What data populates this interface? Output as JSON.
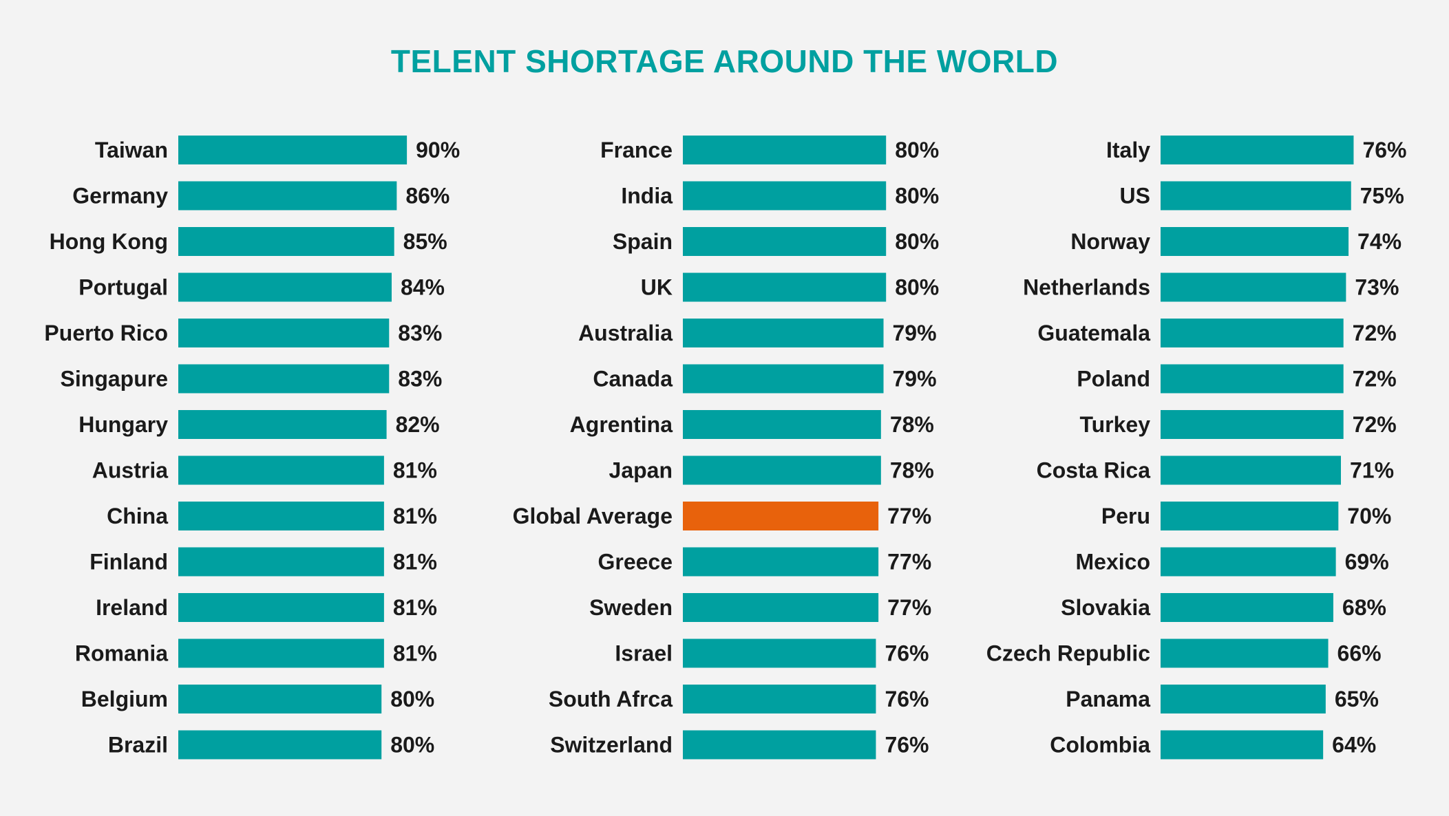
{
  "chart_data": {
    "type": "bar",
    "orientation": "horizontal",
    "title": "TELENT SHORTAGE AROUND THE WORLD",
    "value_suffix": "%",
    "xlim": [
      0,
      100
    ],
    "grid": false,
    "colors": {
      "bar": "#00a0a0",
      "highlight": "#e8620c",
      "text": "#1a1a1a",
      "title": "#00a0a0"
    },
    "highlight_category": "Global Average",
    "panels": [
      {
        "categories": [
          "Taiwan",
          "Germany",
          "Hong Kong",
          "Portugal",
          "Puerto Rico",
          "Singapure",
          "Hungary",
          "Austria",
          "China",
          "Finland",
          "Ireland",
          "Romania",
          "Belgium",
          "Brazil"
        ],
        "values": [
          90,
          86,
          85,
          84,
          83,
          83,
          82,
          81,
          81,
          81,
          81,
          81,
          80,
          80
        ]
      },
      {
        "categories": [
          "France",
          "India",
          "Spain",
          "UK",
          "Australia",
          "Canada",
          "Agrentina",
          "Japan",
          "Global Average",
          "Greece",
          "Sweden",
          "Israel",
          "South Afrca",
          "Switzerland"
        ],
        "values": [
          80,
          80,
          80,
          80,
          79,
          79,
          78,
          78,
          77,
          77,
          77,
          76,
          76,
          76
        ]
      },
      {
        "categories": [
          "Italy",
          "US",
          "Norway",
          "Netherlands",
          "Guatemala",
          "Poland",
          "Turkey",
          "Costa Rica",
          "Peru",
          "Mexico",
          "Slovakia",
          "Czech Republic",
          "Panama",
          "Colombia"
        ],
        "values": [
          76,
          75,
          74,
          73,
          72,
          72,
          72,
          71,
          70,
          69,
          68,
          66,
          65,
          64
        ]
      }
    ]
  }
}
